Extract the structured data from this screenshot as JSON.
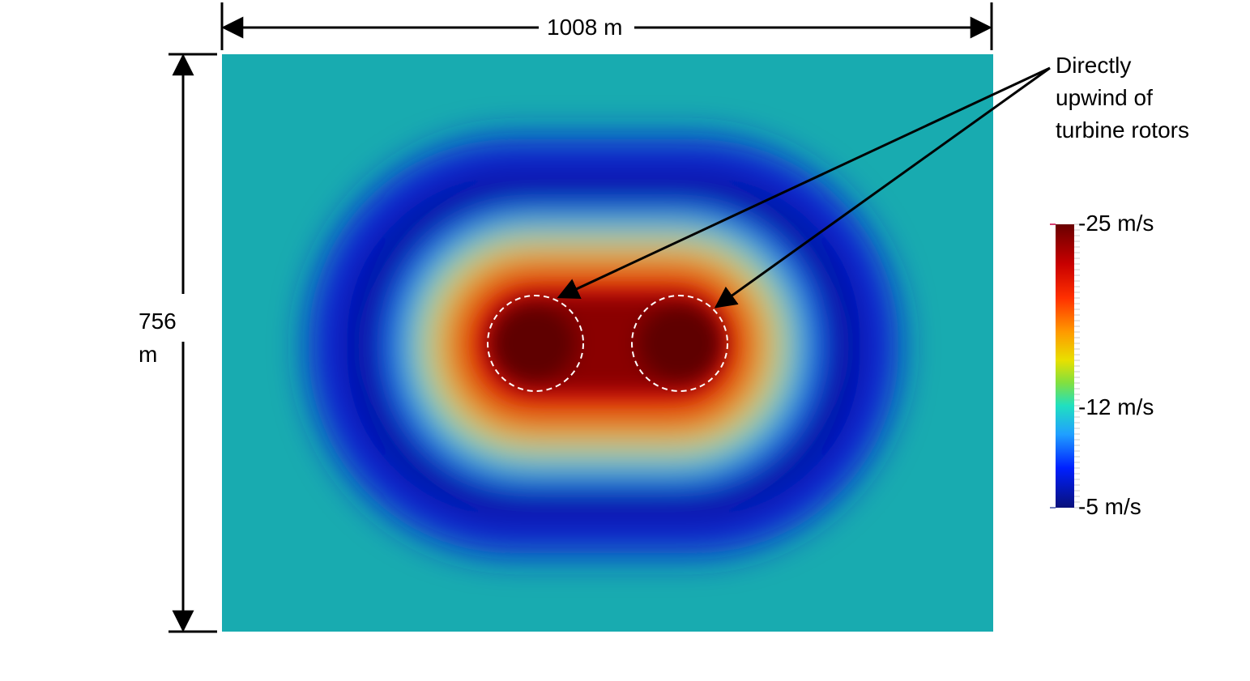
{
  "dimensions": {
    "width_label": "1008 m",
    "height_label_line1": "756",
    "height_label_line2": "m"
  },
  "annotation": {
    "line1": "Directly",
    "line2": "upwind of",
    "line3": "turbine rotors"
  },
  "colorbar": {
    "top_label": "-25 m/s",
    "mid_label": "-12 m/s",
    "bottom_label": "-5 m/s",
    "scale_min": -25,
    "scale_mid": -12,
    "scale_max": -5
  },
  "colors": {
    "background_field": "#18abb0",
    "outer_ring": "#0a1fd2",
    "ring_dark": "#050c8c",
    "core": "#6a0000",
    "rotor_outline": "#ffffff"
  },
  "turbines": {
    "count": 2
  }
}
